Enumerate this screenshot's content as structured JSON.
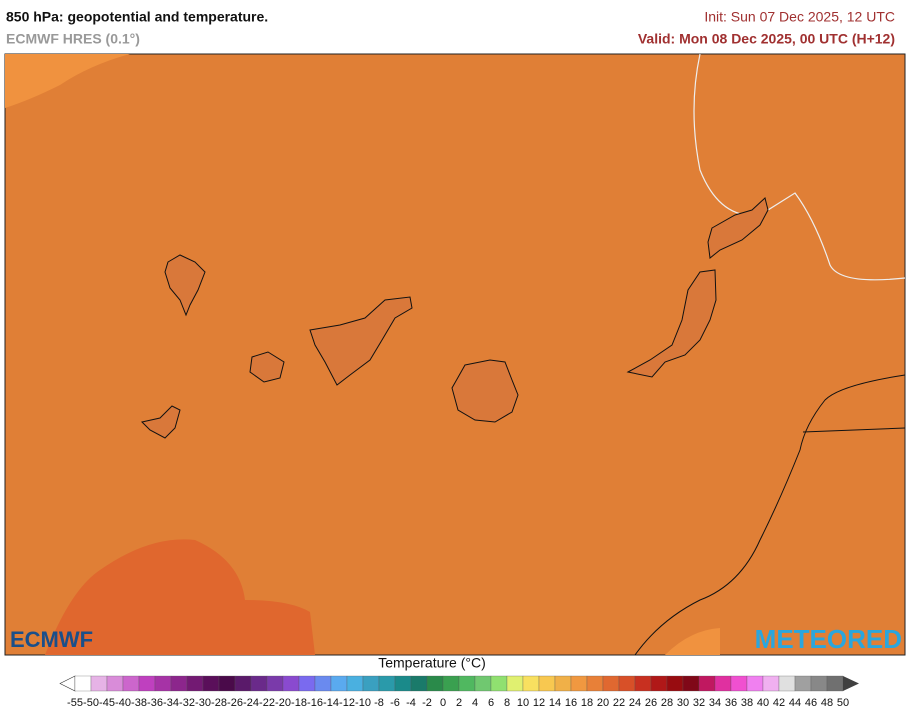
{
  "header": {
    "title": "850 hPa: geopotential and temperature.",
    "subtitle": "ECMWF HRES (0.1°)",
    "init": "Init: Sun 07 Dec 2025, 12 UTC",
    "valid": "Valid: Mon 08 Dec 2025, 00 UTC (H+12)"
  },
  "logos": {
    "left": "ECMWF",
    "right": "METEORED"
  },
  "colorbar": {
    "label": "Temperature (°C)",
    "ticks": [
      -55,
      -50,
      -45,
      -40,
      -38,
      -36,
      -34,
      -32,
      -30,
      -28,
      -26,
      -24,
      -22,
      -20,
      -18,
      -16,
      -14,
      -12,
      -10,
      -8,
      -6,
      -4,
      -2,
      0,
      2,
      4,
      6,
      8,
      10,
      12,
      14,
      16,
      18,
      20,
      22,
      24,
      26,
      28,
      30,
      32,
      34,
      36,
      38,
      40,
      42,
      44,
      46,
      48,
      50
    ],
    "colors": [
      "#ffffff",
      "#e6b3e6",
      "#d98cd9",
      "#cc66cc",
      "#bf40bf",
      "#a633a6",
      "#8c268c",
      "#731a73",
      "#5a0f5a",
      "#4a0a4a",
      "#5a1a6a",
      "#6a2a8a",
      "#7a3aaa",
      "#8a4acf",
      "#7a6aef",
      "#6a8aef",
      "#5aaaef",
      "#4ab0e0",
      "#3aa0c0",
      "#2a9aaa",
      "#1a8a8a",
      "#1a7a6a",
      "#2a8a4a",
      "#3aa050",
      "#50b860",
      "#70c870",
      "#90e070",
      "#e0f070",
      "#f8e060",
      "#f8c850",
      "#f0b048",
      "#f09840",
      "#e88038",
      "#e06830",
      "#d85028",
      "#c83020",
      "#b01818",
      "#980c10",
      "#800818",
      "#c01860",
      "#e030a0",
      "#f050d0",
      "#f080f0",
      "#f0b0f0",
      "#e0e0e0",
      "#a0a0a0",
      "#888888",
      "#707070"
    ],
    "under_color": "#ffffff",
    "over_color": "#404040"
  }
}
